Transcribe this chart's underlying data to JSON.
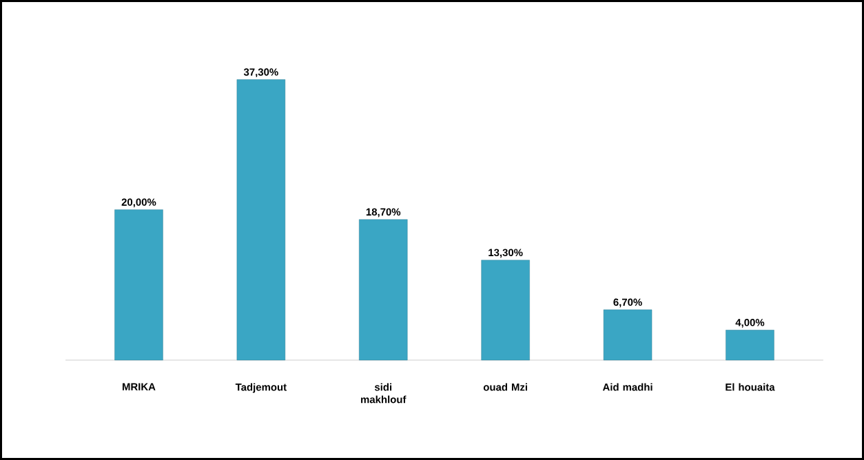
{
  "chart_data": {
    "type": "bar",
    "categories": [
      "MRIKA",
      "Tadjemout",
      "sidi makhlouf",
      "ouad Mzi",
      "Aid madhi",
      "El houaita"
    ],
    "values": [
      20.0,
      37.3,
      18.7,
      13.3,
      6.7,
      4.0
    ],
    "value_labels": [
      "20,00%",
      "37,30%",
      "18,70%",
      "13,30%",
      "6,70%",
      "4,00%"
    ],
    "color": "#3aa6c4"
  }
}
